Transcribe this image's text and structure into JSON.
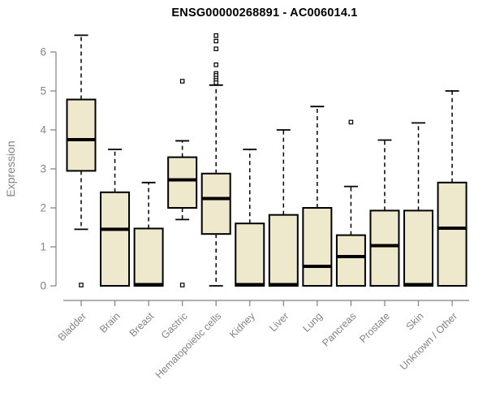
{
  "chart_data": {
    "type": "boxplot",
    "title": "ENSG00000268891 - AC006014.1",
    "ylabel": "Expression",
    "xlabel": "",
    "ylim": [
      0,
      6
    ],
    "yticks": [
      0,
      1,
      2,
      3,
      4,
      5,
      6
    ],
    "grid": false,
    "legend": "none",
    "colors": {
      "box_fill": "#EEE8CD",
      "box_border": "#000000",
      "median": "#000000",
      "whisker": "#000000",
      "axis": "#808080",
      "tick_label": "#848484",
      "title": "#000000",
      "background": "#FFFFFF"
    },
    "categories": [
      "Bladder",
      "Brain",
      "Breast",
      "Gastric",
      "Hematopoietic cells",
      "Kidney",
      "Liver",
      "Lung",
      "Pancreas",
      "Prostate",
      "Skin",
      "Unknown / Other"
    ],
    "series": [
      {
        "category": "Bladder",
        "whisker_low": 1.45,
        "q1": 2.95,
        "median": 3.75,
        "q3": 4.78,
        "whisker_high": 6.43,
        "outliers": [
          0.02
        ]
      },
      {
        "category": "Brain",
        "whisker_low": 0,
        "q1": 0,
        "median": 1.45,
        "q3": 2.4,
        "whisker_high": 3.5,
        "outliers": []
      },
      {
        "category": "Breast",
        "whisker_low": 0,
        "q1": 0,
        "median": 0.03,
        "q3": 1.47,
        "whisker_high": 2.65,
        "outliers": []
      },
      {
        "category": "Gastric",
        "whisker_low": 1.7,
        "q1": 2.0,
        "median": 2.72,
        "q3": 3.3,
        "whisker_high": 3.72,
        "outliers": [
          5.25,
          0.02
        ]
      },
      {
        "category": "Hematopoietic cells",
        "whisker_low": 0,
        "q1": 1.33,
        "median": 2.24,
        "q3": 2.88,
        "whisker_high": 5.15,
        "outliers": [
          6.42,
          6.28,
          6.08,
          5.67,
          5.45,
          5.4,
          5.33,
          5.27,
          5.21
        ]
      },
      {
        "category": "Kidney",
        "whisker_low": 0,
        "q1": 0,
        "median": 0.03,
        "q3": 1.6,
        "whisker_high": 3.5,
        "outliers": []
      },
      {
        "category": "Liver",
        "whisker_low": 0,
        "q1": 0,
        "median": 0.03,
        "q3": 1.82,
        "whisker_high": 4.0,
        "outliers": []
      },
      {
        "category": "Lung",
        "whisker_low": 0,
        "q1": 0,
        "median": 0.5,
        "q3": 2.0,
        "whisker_high": 4.6,
        "outliers": []
      },
      {
        "category": "Pancreas",
        "whisker_low": 0,
        "q1": 0,
        "median": 0.75,
        "q3": 1.3,
        "whisker_high": 2.55,
        "outliers": [
          4.2
        ]
      },
      {
        "category": "Prostate",
        "whisker_low": 0,
        "q1": 0,
        "median": 1.03,
        "q3": 1.93,
        "whisker_high": 3.74,
        "outliers": []
      },
      {
        "category": "Skin",
        "whisker_low": 0,
        "q1": 0,
        "median": 0.03,
        "q3": 1.93,
        "whisker_high": 4.18,
        "outliers": []
      },
      {
        "category": "Unknown / Other",
        "whisker_low": 0,
        "q1": 0,
        "median": 1.48,
        "q3": 2.65,
        "whisker_high": 5.0,
        "outliers": []
      }
    ]
  }
}
